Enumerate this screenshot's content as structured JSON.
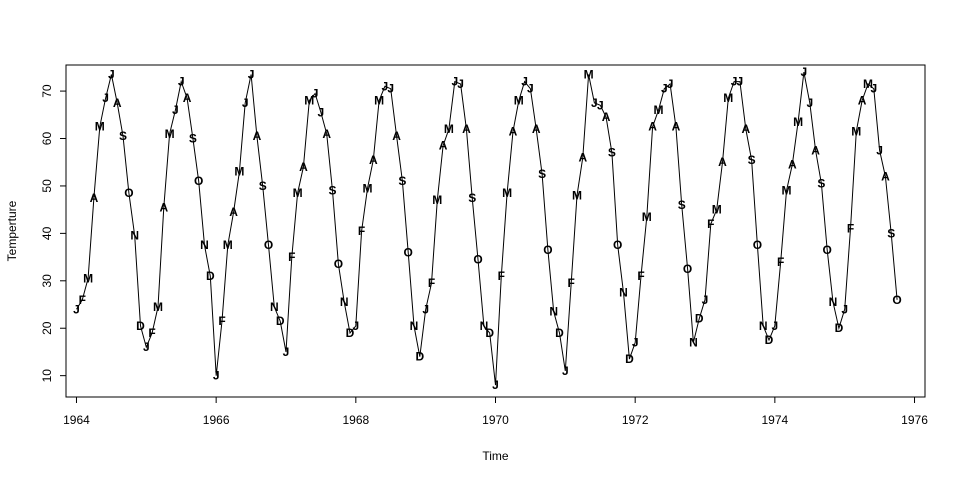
{
  "chart_data": {
    "type": "line",
    "title": "",
    "xlabel": "Time",
    "ylabel": "Temperture",
    "xlim": [
      1963.85,
      1976.15
    ],
    "ylim": [
      5.5,
      75.5
    ],
    "x_ticks": [
      1964,
      1966,
      1968,
      1970,
      1972,
      1974,
      1976
    ],
    "x_tick_labels": [
      "1964",
      "1966",
      "1968",
      "1970",
      "1972",
      "1974",
      "1976"
    ],
    "y_ticks": [
      10,
      20,
      30,
      40,
      50,
      60,
      70
    ],
    "y_tick_labels": [
      "10",
      "20",
      "30",
      "40",
      "50",
      "60",
      "70"
    ],
    "start_year": 1964,
    "frequency": 12,
    "month_labels": [
      "J",
      "F",
      "M",
      "A",
      "M",
      "J",
      "J",
      "A",
      "S",
      "O",
      "N",
      "D"
    ],
    "grid": false,
    "legend": "none",
    "series": [
      {
        "values": [
          24.0,
          26.0,
          30.5,
          47.5,
          62.5,
          68.5,
          73.5,
          67.5,
          60.5,
          48.5,
          39.5,
          20.5,
          16.0,
          19.0,
          24.5,
          45.5,
          61.0,
          66.0,
          72.0,
          68.5,
          60.0,
          51.0,
          37.5,
          31.0,
          10.0,
          21.5,
          37.5,
          44.5,
          53.0,
          67.5,
          73.5,
          60.5,
          50.0,
          37.5,
          24.5,
          21.5,
          15.0,
          35.0,
          48.5,
          54.0,
          68.0,
          69.5,
          65.5,
          61.0,
          49.0,
          33.5,
          25.5,
          19.0,
          20.5,
          40.5,
          49.5,
          55.5,
          68.0,
          71.0,
          70.5,
          60.5,
          51.0,
          36.0,
          20.5,
          14.0,
          24.0,
          29.5,
          47.0,
          58.5,
          62.0,
          72.0,
          71.5,
          62.0,
          47.5,
          34.5,
          20.5,
          19.0,
          8.0,
          31.0,
          48.5,
          61.5,
          68.0,
          72.0,
          70.5,
          62.0,
          52.5,
          36.5,
          23.5,
          19.0,
          11.0,
          29.5,
          48.0,
          56.0,
          73.5,
          67.5,
          67.0,
          64.5,
          57.0,
          37.5,
          27.5,
          13.5,
          17.0,
          31.0,
          43.5,
          62.5,
          66.0,
          70.5,
          71.5,
          62.5,
          46.0,
          32.5,
          17.0,
          22.0,
          26.0,
          42.0,
          45.0,
          55.0,
          68.5,
          72.0,
          72.0,
          62.0,
          55.5,
          37.5,
          20.5,
          17.5,
          20.5,
          34.0,
          49.0,
          54.5,
          63.5,
          74.0,
          67.5,
          57.5,
          50.5,
          36.5,
          25.5,
          20.0,
          24.0,
          41.0,
          61.5,
          68.0,
          71.5,
          70.5,
          57.5,
          52.0,
          40.0,
          26.0
        ]
      }
    ]
  }
}
